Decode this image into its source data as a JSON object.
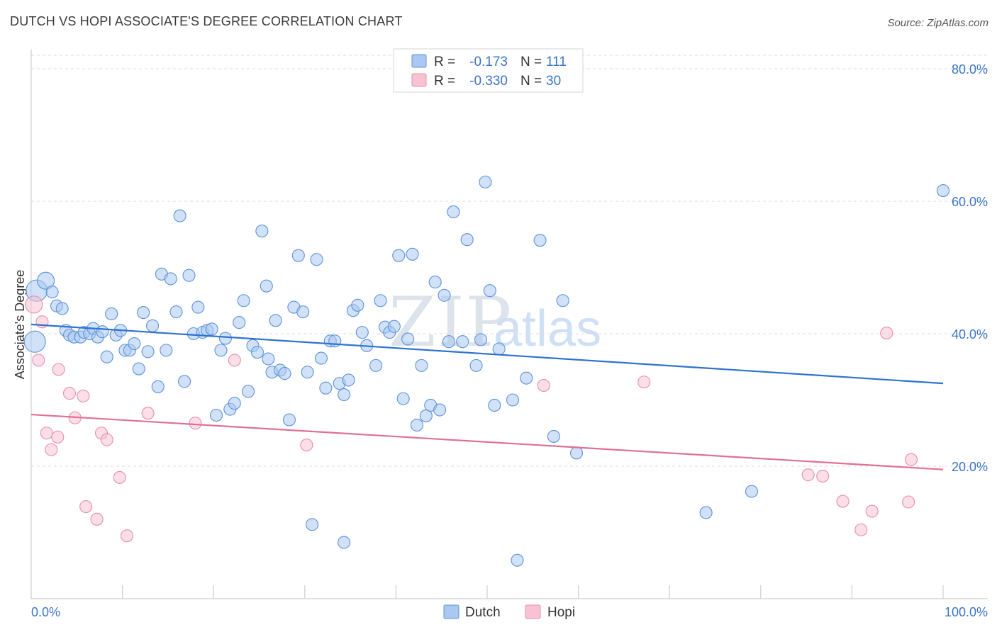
{
  "title": "DUTCH VS HOPI ASSOCIATE'S DEGREE CORRELATION CHART",
  "source": "Source: ZipAtlas.com",
  "watermark": {
    "zip": "ZIP",
    "atlas": "atlas"
  },
  "colors": {
    "dutch_fill": "#a9c9f2",
    "dutch_stroke": "#5d93d8",
    "dutch_line": "#2f72d0",
    "hopi_fill": "#f7c3d3",
    "hopi_stroke": "#e98eab",
    "hopi_line": "#e06f96",
    "accent_text": "#3c74c6",
    "grid": "#dcdcdc"
  },
  "legend": {
    "rows": [
      {
        "r_label": "R =",
        "r_value": "-0.173",
        "n_label": "N =",
        "n_value": "111"
      },
      {
        "r_label": "R =",
        "r_value": "-0.330",
        "n_label": "N =",
        "n_value": "30"
      }
    ]
  },
  "bottom_legend": {
    "dutch": "Dutch",
    "hopi": "Hopi"
  },
  "chart_data": {
    "type": "scatter",
    "title": "DUTCH VS HOPI ASSOCIATE'S DEGREE CORRELATION CHART",
    "xlabel": "",
    "ylabel": "Associate's Degree",
    "xlim": [
      0,
      100
    ],
    "ylim": [
      0,
      80
    ],
    "x_tick_labels": [
      "0.0%",
      "100.0%"
    ],
    "y_ticks": [
      20,
      40,
      60,
      80
    ],
    "y_tick_labels": [
      "20.0%",
      "40.0%",
      "60.0%",
      "80.0%"
    ],
    "grid": true,
    "series": [
      {
        "name": "Dutch",
        "r": -0.173,
        "n": 111,
        "trend": {
          "x": [
            0,
            100
          ],
          "y": [
            41.4,
            32.5
          ]
        },
        "points": [
          [
            0.6,
            46.5
          ],
          [
            0.4,
            38.8
          ],
          [
            1.6,
            48.0
          ],
          [
            2.3,
            46.3
          ],
          [
            2.8,
            44.2
          ],
          [
            3.4,
            43.8
          ],
          [
            3.8,
            40.5
          ],
          [
            4.2,
            39.8
          ],
          [
            4.7,
            39.5
          ],
          [
            5.4,
            39.5
          ],
          [
            5.8,
            40.2
          ],
          [
            6.4,
            40.0
          ],
          [
            6.8,
            40.8
          ],
          [
            7.3,
            39.5
          ],
          [
            7.8,
            40.3
          ],
          [
            8.3,
            36.5
          ],
          [
            8.8,
            43.0
          ],
          [
            9.3,
            39.8
          ],
          [
            9.8,
            40.5
          ],
          [
            10.3,
            37.5
          ],
          [
            10.8,
            37.5
          ],
          [
            11.3,
            38.5
          ],
          [
            11.8,
            34.7
          ],
          [
            12.3,
            43.2
          ],
          [
            12.8,
            37.3
          ],
          [
            13.3,
            41.2
          ],
          [
            13.9,
            32.0
          ],
          [
            14.3,
            49.0
          ],
          [
            14.8,
            37.5
          ],
          [
            15.3,
            48.3
          ],
          [
            15.9,
            43.3
          ],
          [
            16.3,
            57.8
          ],
          [
            16.8,
            32.8
          ],
          [
            17.3,
            48.8
          ],
          [
            17.8,
            40.0
          ],
          [
            18.3,
            44.0
          ],
          [
            18.8,
            40.2
          ],
          [
            19.3,
            40.5
          ],
          [
            19.8,
            40.7
          ],
          [
            20.3,
            27.7
          ],
          [
            20.8,
            37.5
          ],
          [
            21.3,
            39.3
          ],
          [
            21.8,
            28.6
          ],
          [
            22.3,
            29.5
          ],
          [
            22.8,
            41.7
          ],
          [
            23.3,
            45.0
          ],
          [
            23.8,
            31.3
          ],
          [
            24.3,
            38.2
          ],
          [
            24.8,
            37.2
          ],
          [
            25.3,
            55.5
          ],
          [
            25.8,
            47.2
          ],
          [
            26.0,
            36.2
          ],
          [
            26.4,
            34.2
          ],
          [
            26.8,
            42.0
          ],
          [
            27.3,
            34.5
          ],
          [
            27.8,
            34.0
          ],
          [
            28.3,
            27.0
          ],
          [
            28.8,
            44.0
          ],
          [
            29.3,
            51.8
          ],
          [
            29.8,
            43.3
          ],
          [
            30.3,
            34.2
          ],
          [
            30.8,
            11.2
          ],
          [
            31.3,
            51.2
          ],
          [
            31.8,
            36.3
          ],
          [
            32.3,
            31.8
          ],
          [
            32.8,
            38.9
          ],
          [
            33.3,
            38.9
          ],
          [
            33.8,
            32.5
          ],
          [
            34.3,
            8.5
          ],
          [
            34.3,
            30.8
          ],
          [
            34.8,
            33.0
          ],
          [
            35.3,
            43.5
          ],
          [
            35.8,
            44.3
          ],
          [
            36.3,
            40.2
          ],
          [
            36.8,
            38.2
          ],
          [
            37.8,
            35.2
          ],
          [
            38.3,
            45.0
          ],
          [
            38.8,
            41.0
          ],
          [
            39.3,
            40.2
          ],
          [
            39.8,
            41.1
          ],
          [
            40.3,
            51.8
          ],
          [
            40.8,
            30.2
          ],
          [
            41.3,
            39.2
          ],
          [
            41.8,
            52.0
          ],
          [
            42.3,
            26.2
          ],
          [
            42.8,
            35.2
          ],
          [
            43.3,
            27.6
          ],
          [
            43.8,
            29.2
          ],
          [
            44.3,
            47.8
          ],
          [
            44.8,
            28.5
          ],
          [
            45.3,
            45.8
          ],
          [
            45.8,
            38.8
          ],
          [
            46.3,
            58.4
          ],
          [
            47.3,
            38.8
          ],
          [
            47.8,
            54.2
          ],
          [
            48.8,
            35.2
          ],
          [
            49.3,
            39.1
          ],
          [
            49.8,
            62.9
          ],
          [
            50.3,
            46.5
          ],
          [
            50.8,
            29.2
          ],
          [
            51.3,
            37.7
          ],
          [
            52.8,
            30.0
          ],
          [
            53.3,
            5.8
          ],
          [
            54.3,
            33.3
          ],
          [
            55.8,
            54.1
          ],
          [
            57.3,
            24.5
          ],
          [
            58.3,
            45.0
          ],
          [
            59.8,
            22.0
          ],
          [
            74.0,
            13.0
          ],
          [
            79.0,
            16.2
          ],
          [
            100.0,
            61.6
          ]
        ]
      },
      {
        "name": "Hopi",
        "r": -0.33,
        "n": 30,
        "trend": {
          "x": [
            0,
            100
          ],
          "y": [
            27.8,
            19.5
          ]
        },
        "points": [
          [
            0.3,
            44.4
          ],
          [
            0.8,
            36.0
          ],
          [
            1.2,
            41.8
          ],
          [
            1.7,
            25.0
          ],
          [
            2.2,
            22.5
          ],
          [
            2.9,
            24.4
          ],
          [
            3.0,
            34.6
          ],
          [
            4.2,
            31.0
          ],
          [
            4.8,
            27.3
          ],
          [
            5.7,
            30.6
          ],
          [
            6.0,
            13.9
          ],
          [
            7.2,
            12.0
          ],
          [
            7.7,
            25.0
          ],
          [
            8.3,
            24.0
          ],
          [
            9.7,
            18.3
          ],
          [
            10.5,
            9.5
          ],
          [
            12.8,
            28.0
          ],
          [
            18.0,
            26.5
          ],
          [
            22.3,
            36.0
          ],
          [
            30.2,
            23.2
          ],
          [
            56.2,
            32.2
          ],
          [
            67.2,
            32.7
          ],
          [
            85.2,
            18.7
          ],
          [
            86.8,
            18.5
          ],
          [
            89.0,
            14.7
          ],
          [
            91.0,
            10.4
          ],
          [
            92.2,
            13.2
          ],
          [
            93.8,
            40.1
          ],
          [
            96.2,
            14.6
          ],
          [
            96.5,
            21.0
          ]
        ]
      }
    ]
  }
}
